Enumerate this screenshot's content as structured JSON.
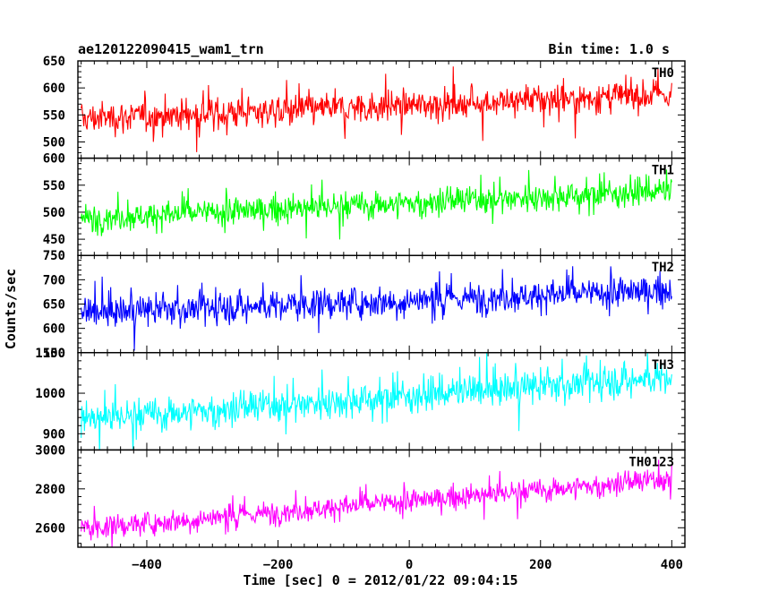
{
  "header": {
    "title": "ae120122090415_wam1_trn",
    "bin_time": "Bin time: 1.0 s"
  },
  "chart_data": {
    "type": "line",
    "xlabel": "Time [sec] 0 = 2012/01/22 09:04:15",
    "ylabel": "Counts/sec",
    "xlim": [
      -505,
      420
    ],
    "x_ticks": [
      -400,
      -200,
      0,
      200,
      400
    ],
    "x_tick_labels": [
      "−400",
      "−200",
      "0",
      "200",
      "400"
    ],
    "x_start": -500,
    "x_end": 400,
    "series": [
      {
        "name": "TH0",
        "color": "#ff0000",
        "ylim": [
          470,
          650
        ],
        "y_ticks": [
          500,
          550,
          600,
          650
        ],
        "trend_start": 543,
        "trend_end": 588,
        "noise_sd": 25,
        "points": [
          [
            -500,
            540
          ],
          [
            -400,
            548
          ],
          [
            -300,
            550
          ],
          [
            -200,
            548
          ],
          [
            -100,
            555
          ],
          [
            0,
            560
          ],
          [
            100,
            562
          ],
          [
            200,
            572
          ],
          [
            300,
            580
          ],
          [
            400,
            588
          ]
        ]
      },
      {
        "name": "TH1",
        "color": "#00ff00",
        "ylim": [
          420,
          600
        ],
        "y_ticks": [
          450,
          500,
          550,
          600
        ],
        "trend_start": 488,
        "trend_end": 540,
        "noise_sd": 22,
        "points": [
          [
            -500,
            488
          ],
          [
            -400,
            492
          ],
          [
            -300,
            495
          ],
          [
            -200,
            500
          ],
          [
            -100,
            502
          ],
          [
            0,
            508
          ],
          [
            100,
            515
          ],
          [
            200,
            522
          ],
          [
            300,
            530
          ],
          [
            400,
            540
          ]
        ]
      },
      {
        "name": "TH2",
        "color": "#0000ff",
        "ylim": [
          550,
          750
        ],
        "y_ticks": [
          550,
          600,
          650,
          700,
          750
        ],
        "trend_start": 632,
        "trend_end": 678,
        "noise_sd": 27,
        "points": [
          [
            -500,
            632
          ],
          [
            -400,
            635
          ],
          [
            -300,
            638
          ],
          [
            -200,
            642
          ],
          [
            -100,
            645
          ],
          [
            0,
            650
          ],
          [
            100,
            655
          ],
          [
            200,
            662
          ],
          [
            300,
            670
          ],
          [
            400,
            678
          ]
        ]
      },
      {
        "name": "TH3",
        "color": "#00ffff",
        "ylim": [
          860,
          1100
        ],
        "y_ticks": [
          900,
          1000,
          1100
        ],
        "trend_start": 935,
        "trend_end": 1040,
        "noise_sd": 35,
        "points": [
          [
            -500,
            935
          ],
          [
            -400,
            942
          ],
          [
            -300,
            950
          ],
          [
            -200,
            960
          ],
          [
            -100,
            970
          ],
          [
            0,
            985
          ],
          [
            100,
            995
          ],
          [
            200,
            1010
          ],
          [
            300,
            1025
          ],
          [
            400,
            1040
          ]
        ]
      },
      {
        "name": "TH0123",
        "color": "#ff00ff",
        "ylim": [
          2500,
          3000
        ],
        "y_ticks": [
          2600,
          2800,
          3000
        ],
        "trend_start": 2595,
        "trend_end": 2850,
        "noise_sd": 50,
        "points": [
          [
            -500,
            2595
          ],
          [
            -400,
            2605
          ],
          [
            -300,
            2620
          ],
          [
            -200,
            2640
          ],
          [
            -100,
            2660
          ],
          [
            0,
            2690
          ],
          [
            100,
            2720
          ],
          [
            200,
            2760
          ],
          [
            300,
            2800
          ],
          [
            400,
            2850
          ]
        ]
      }
    ]
  }
}
